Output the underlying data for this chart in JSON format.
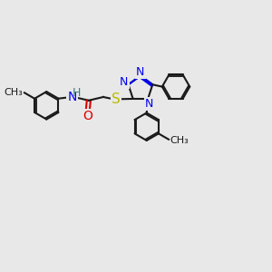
{
  "bg_color": "#e8e8e8",
  "bond_color": "#1a1a1a",
  "N_color": "#0000ee",
  "O_color": "#dd0000",
  "S_color": "#bbbb00",
  "H_color": "#3a8080",
  "lw": 1.5,
  "dbo": 0.07,
  "fs": 10,
  "xlim": [
    0,
    10
  ],
  "ylim": [
    0,
    10
  ]
}
